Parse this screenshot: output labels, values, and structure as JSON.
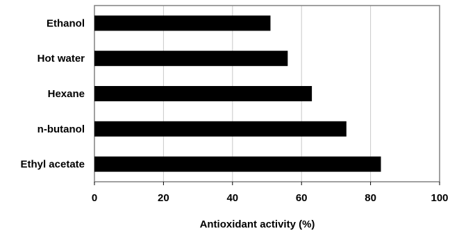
{
  "chart_data": {
    "type": "bar",
    "orientation": "horizontal",
    "title": "",
    "xlabel": "Antioxidant activity (%)",
    "ylabel": "",
    "categories": [
      "Ethanol",
      "Hot water",
      "Hexane",
      "n-butanol",
      "Ethyl acetate"
    ],
    "values": [
      51,
      56,
      63,
      73,
      83
    ],
    "xlim": [
      0,
      100
    ],
    "xticks": [
      0,
      20,
      40,
      60,
      80,
      100
    ],
    "xtick_labels": [
      "0",
      "20",
      "40",
      "60",
      "80",
      "100"
    ],
    "grid": "vertical",
    "legend": "none",
    "colors": {
      "bar": "#000000",
      "grid": "#c8c8c8",
      "frame": "#808080",
      "background": "#ffffff"
    }
  }
}
